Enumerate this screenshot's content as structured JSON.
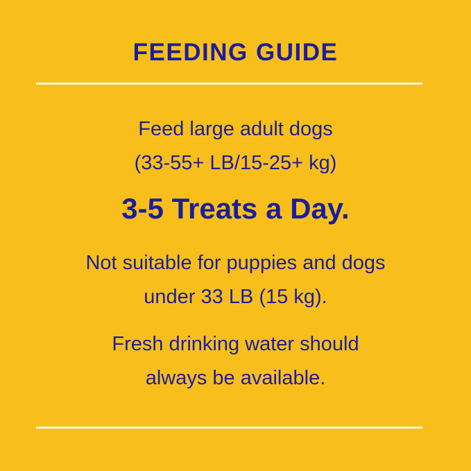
{
  "title": "FEEDING GUIDE",
  "intro": [
    "Feed large adult dogs",
    "(33-55+ LB/15-25+ kg)"
  ],
  "dosage": "3-5 Treats a Day.",
  "warning": [
    "Not suitable for puppies and dogs",
    "under 33 LB (15 kg)."
  ],
  "water": [
    "Fresh drinking water should",
    "always be available."
  ],
  "colors": {
    "background": "#F8BF1C",
    "text": "#1B1E9B",
    "rule": "#FFF6DF"
  }
}
